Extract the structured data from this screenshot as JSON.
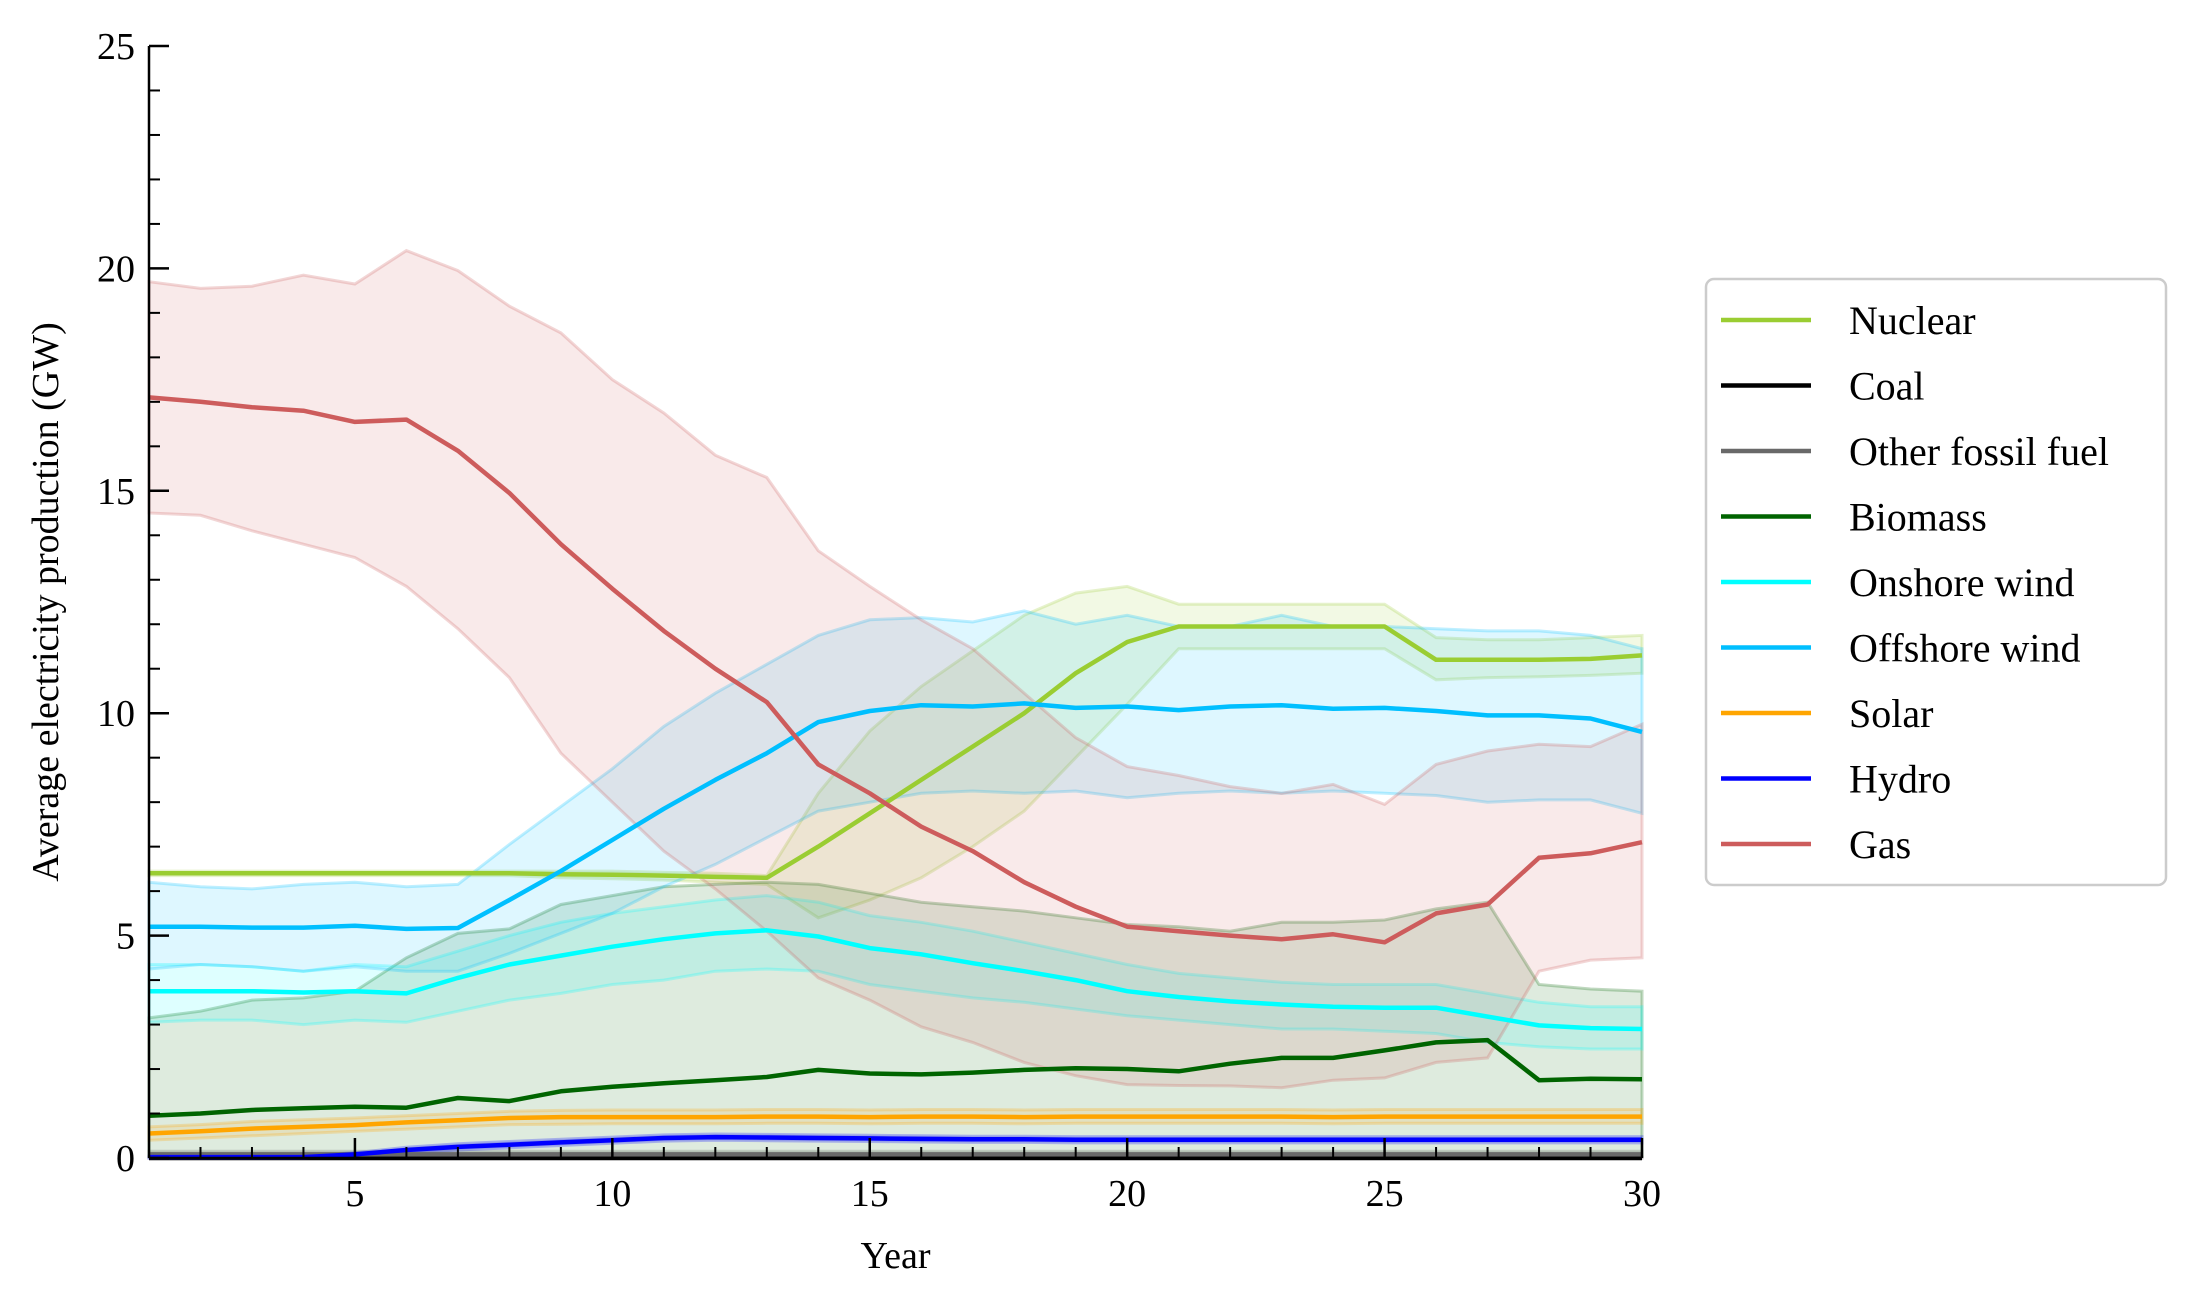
{
  "chart_data": {
    "type": "line",
    "xlabel": "Year",
    "ylabel": "Average electricity production (GW)",
    "xlim": [
      1,
      30
    ],
    "ylim": [
      0,
      25
    ],
    "xticks": [
      5,
      10,
      15,
      20,
      25,
      30
    ],
    "yticks": [
      0,
      5,
      10,
      15,
      20,
      25
    ],
    "x": [
      1,
      2,
      3,
      4,
      5,
      6,
      7,
      8,
      9,
      10,
      11,
      12,
      13,
      14,
      15,
      16,
      17,
      18,
      19,
      20,
      21,
      22,
      23,
      24,
      25,
      26,
      27,
      28,
      29,
      30
    ],
    "legend_position": "right",
    "grid": false,
    "series": [
      {
        "name": "Nuclear",
        "color": "#9acd32",
        "values": [
          6.4,
          6.4,
          6.4,
          6.4,
          6.4,
          6.4,
          6.4,
          6.4,
          6.38,
          6.37,
          6.35,
          6.32,
          6.3,
          7.0,
          7.75,
          8.5,
          9.25,
          10.0,
          10.9,
          11.6,
          11.95,
          11.95,
          11.95,
          11.95,
          11.95,
          11.2,
          11.2,
          11.2,
          11.22,
          11.3
        ],
        "lower": [
          6.35,
          6.35,
          6.35,
          6.35,
          6.35,
          6.35,
          6.35,
          6.35,
          6.3,
          6.28,
          6.25,
          6.2,
          6.15,
          5.4,
          5.8,
          6.3,
          7.0,
          7.8,
          9.0,
          10.2,
          11.45,
          11.45,
          11.45,
          11.45,
          11.45,
          10.75,
          10.8,
          10.82,
          10.85,
          10.9
        ],
        "upper": [
          6.45,
          6.45,
          6.45,
          6.45,
          6.45,
          6.45,
          6.45,
          6.45,
          6.45,
          6.45,
          6.42,
          6.4,
          6.35,
          8.2,
          9.6,
          10.6,
          11.4,
          12.2,
          12.7,
          12.85,
          12.45,
          12.45,
          12.45,
          12.45,
          12.45,
          11.7,
          11.65,
          11.65,
          11.7,
          11.75
        ]
      },
      {
        "name": "Coal",
        "color": "#000000",
        "values": [
          0,
          0,
          0,
          0,
          0,
          0,
          0,
          0,
          0,
          0,
          0,
          0,
          0,
          0,
          0,
          0,
          0,
          0,
          0,
          0,
          0,
          0,
          0,
          0,
          0,
          0,
          0,
          0,
          0,
          0
        ],
        "lower": [
          0,
          0,
          0,
          0,
          0,
          0,
          0,
          0,
          0,
          0,
          0,
          0,
          0,
          0,
          0,
          0,
          0,
          0,
          0,
          0,
          0,
          0,
          0,
          0,
          0,
          0,
          0,
          0,
          0,
          0
        ],
        "upper": [
          0.02,
          0.02,
          0.02,
          0.02,
          0.02,
          0.02,
          0.02,
          0.02,
          0.02,
          0.02,
          0.02,
          0.02,
          0.02,
          0.02,
          0.02,
          0.02,
          0.02,
          0.02,
          0.02,
          0.02,
          0.02,
          0.02,
          0.02,
          0.02,
          0.02,
          0.02,
          0.02,
          0.02,
          0.02,
          0.02
        ]
      },
      {
        "name": "Other fossil fuel",
        "color": "#696969",
        "values": [
          0.08,
          0.08,
          0.08,
          0.08,
          0.08,
          0.08,
          0.08,
          0.08,
          0.08,
          0.08,
          0.08,
          0.08,
          0.08,
          0.08,
          0.08,
          0.08,
          0.08,
          0.08,
          0.08,
          0.08,
          0.08,
          0.08,
          0.08,
          0.08,
          0.08,
          0.08,
          0.08,
          0.08,
          0.08,
          0.08
        ],
        "lower": [
          0.04,
          0.04,
          0.04,
          0.04,
          0.04,
          0.04,
          0.04,
          0.04,
          0.04,
          0.04,
          0.04,
          0.04,
          0.04,
          0.04,
          0.04,
          0.04,
          0.04,
          0.04,
          0.04,
          0.04,
          0.04,
          0.04,
          0.04,
          0.04,
          0.04,
          0.04,
          0.04,
          0.04,
          0.04,
          0.04
        ],
        "upper": [
          0.15,
          0.15,
          0.15,
          0.15,
          0.15,
          0.15,
          0.15,
          0.15,
          0.15,
          0.15,
          0.15,
          0.15,
          0.15,
          0.15,
          0.15,
          0.15,
          0.15,
          0.15,
          0.15,
          0.15,
          0.15,
          0.15,
          0.15,
          0.15,
          0.15,
          0.15,
          0.15,
          0.15,
          0.15,
          0.15
        ]
      },
      {
        "name": "Biomass",
        "color": "#006400",
        "values": [
          0.95,
          1.0,
          1.08,
          1.12,
          1.15,
          1.13,
          1.35,
          1.28,
          1.5,
          1.6,
          1.68,
          1.75,
          1.82,
          1.98,
          1.9,
          1.88,
          1.92,
          1.98,
          2.02,
          2.0,
          1.95,
          2.12,
          2.25,
          2.25,
          2.42,
          2.6,
          2.65,
          1.75,
          1.78,
          1.77
        ],
        "lower": [
          0.05,
          0.05,
          0.05,
          0.05,
          0.05,
          0.05,
          0.05,
          0.05,
          0.05,
          0.05,
          0.05,
          0.05,
          0.05,
          0.05,
          0.05,
          0.05,
          0.05,
          0.05,
          0.05,
          0.05,
          0.05,
          0.05,
          0.05,
          0.05,
          0.05,
          0.05,
          0.05,
          0.05,
          0.05,
          0.05
        ],
        "upper": [
          3.15,
          3.3,
          3.55,
          3.6,
          3.75,
          4.5,
          5.05,
          5.15,
          5.7,
          5.9,
          6.1,
          6.15,
          6.2,
          6.15,
          5.95,
          5.75,
          5.65,
          5.55,
          5.4,
          5.25,
          5.2,
          5.1,
          5.3,
          5.3,
          5.35,
          5.6,
          5.75,
          3.9,
          3.8,
          3.75
        ]
      },
      {
        "name": "Onshore wind",
        "color": "#00ffff",
        "values": [
          3.75,
          3.75,
          3.75,
          3.72,
          3.75,
          3.7,
          4.05,
          4.35,
          4.55,
          4.75,
          4.92,
          5.05,
          5.12,
          4.98,
          4.72,
          4.58,
          4.38,
          4.2,
          4.0,
          3.75,
          3.62,
          3.52,
          3.45,
          3.4,
          3.38,
          3.38,
          3.18,
          2.98,
          2.92,
          2.9
        ],
        "lower": [
          3.05,
          3.1,
          3.1,
          3.0,
          3.1,
          3.05,
          3.3,
          3.55,
          3.7,
          3.9,
          4.0,
          4.2,
          4.25,
          4.2,
          3.9,
          3.75,
          3.6,
          3.5,
          3.35,
          3.2,
          3.1,
          3.0,
          2.9,
          2.9,
          2.85,
          2.8,
          2.6,
          2.5,
          2.45,
          2.45
        ],
        "upper": [
          4.35,
          4.35,
          4.3,
          4.2,
          4.35,
          4.3,
          4.65,
          5.0,
          5.3,
          5.5,
          5.65,
          5.8,
          5.9,
          5.75,
          5.45,
          5.3,
          5.1,
          4.85,
          4.6,
          4.35,
          4.15,
          4.05,
          3.95,
          3.9,
          3.9,
          3.9,
          3.7,
          3.5,
          3.4,
          3.4
        ]
      },
      {
        "name": "Offshore wind",
        "color": "#00bfff",
        "values": [
          5.2,
          5.2,
          5.18,
          5.18,
          5.22,
          5.15,
          5.17,
          5.8,
          6.45,
          7.15,
          7.85,
          8.5,
          9.1,
          9.8,
          10.05,
          10.18,
          10.15,
          10.22,
          10.12,
          10.15,
          10.07,
          10.15,
          10.18,
          10.1,
          10.12,
          10.05,
          9.95,
          9.95,
          9.88,
          9.58
        ],
        "lower": [
          4.25,
          4.35,
          4.3,
          4.2,
          4.3,
          4.2,
          4.2,
          4.6,
          5.05,
          5.5,
          6.1,
          6.6,
          7.2,
          7.8,
          8.0,
          8.2,
          8.25,
          8.2,
          8.25,
          8.1,
          8.2,
          8.25,
          8.2,
          8.25,
          8.2,
          8.15,
          8.0,
          8.05,
          8.05,
          7.75
        ],
        "upper": [
          6.2,
          6.1,
          6.05,
          6.15,
          6.2,
          6.1,
          6.15,
          7.05,
          7.9,
          8.75,
          9.7,
          10.45,
          11.1,
          11.75,
          12.1,
          12.15,
          12.05,
          12.3,
          12.0,
          12.2,
          11.95,
          11.95,
          12.2,
          11.95,
          11.95,
          11.9,
          11.85,
          11.85,
          11.75,
          11.45
        ]
      },
      {
        "name": "Solar",
        "color": "#ffa500",
        "values": [
          0.55,
          0.6,
          0.66,
          0.7,
          0.74,
          0.8,
          0.85,
          0.9,
          0.92,
          0.92,
          0.92,
          0.92,
          0.93,
          0.93,
          0.92,
          0.93,
          0.93,
          0.92,
          0.93,
          0.93,
          0.93,
          0.93,
          0.93,
          0.92,
          0.93,
          0.93,
          0.93,
          0.93,
          0.93,
          0.93
        ],
        "lower": [
          0.4,
          0.45,
          0.5,
          0.55,
          0.6,
          0.65,
          0.7,
          0.75,
          0.76,
          0.77,
          0.77,
          0.77,
          0.78,
          0.78,
          0.77,
          0.78,
          0.78,
          0.77,
          0.78,
          0.78,
          0.78,
          0.78,
          0.78,
          0.77,
          0.78,
          0.78,
          0.78,
          0.78,
          0.78,
          0.78
        ],
        "upper": [
          0.7,
          0.75,
          0.82,
          0.86,
          0.9,
          0.95,
          1.0,
          1.05,
          1.07,
          1.08,
          1.08,
          1.08,
          1.09,
          1.09,
          1.08,
          1.09,
          1.09,
          1.08,
          1.09,
          1.09,
          1.09,
          1.09,
          1.09,
          1.08,
          1.09,
          1.09,
          1.09,
          1.09,
          1.09,
          1.09
        ]
      },
      {
        "name": "Hydro",
        "color": "#0000ff",
        "values": [
          0.02,
          0.02,
          0.02,
          0.02,
          0.08,
          0.18,
          0.25,
          0.3,
          0.35,
          0.4,
          0.45,
          0.47,
          0.46,
          0.45,
          0.44,
          0.43,
          0.42,
          0.42,
          0.41,
          0.41,
          0.41,
          0.41,
          0.41,
          0.41,
          0.41,
          0.41,
          0.41,
          0.41,
          0.41,
          0.41
        ],
        "lower": [
          0.0,
          0.0,
          0.0,
          0.0,
          0.04,
          0.12,
          0.18,
          0.23,
          0.28,
          0.33,
          0.38,
          0.4,
          0.39,
          0.38,
          0.37,
          0.36,
          0.35,
          0.35,
          0.34,
          0.34,
          0.34,
          0.34,
          0.34,
          0.34,
          0.34,
          0.34,
          0.34,
          0.34,
          0.34,
          0.34
        ],
        "upper": [
          0.04,
          0.04,
          0.04,
          0.05,
          0.12,
          0.24,
          0.32,
          0.37,
          0.42,
          0.47,
          0.52,
          0.54,
          0.53,
          0.52,
          0.51,
          0.5,
          0.49,
          0.49,
          0.48,
          0.48,
          0.48,
          0.48,
          0.48,
          0.48,
          0.48,
          0.48,
          0.48,
          0.48,
          0.48,
          0.48
        ]
      },
      {
        "name": "Gas",
        "color": "#cd5c5c",
        "values": [
          17.1,
          17.0,
          16.88,
          16.8,
          16.55,
          16.6,
          15.9,
          14.95,
          13.8,
          12.8,
          11.85,
          11.0,
          10.25,
          8.85,
          8.2,
          7.45,
          6.9,
          6.2,
          5.65,
          5.2,
          5.1,
          5.0,
          4.92,
          5.03,
          4.85,
          5.5,
          5.7,
          6.75,
          6.85,
          7.1
        ],
        "lower": [
          14.5,
          14.45,
          14.1,
          13.8,
          13.5,
          12.85,
          11.9,
          10.8,
          9.1,
          8.0,
          6.9,
          6.05,
          5.1,
          4.05,
          3.55,
          2.95,
          2.6,
          2.15,
          1.85,
          1.65,
          1.63,
          1.62,
          1.58,
          1.75,
          1.8,
          2.15,
          2.25,
          4.2,
          4.45,
          4.5
        ],
        "upper": [
          19.7,
          19.55,
          19.6,
          19.85,
          19.65,
          20.4,
          19.95,
          19.15,
          18.55,
          17.5,
          16.75,
          15.8,
          15.3,
          13.65,
          12.85,
          12.1,
          11.45,
          10.45,
          9.45,
          8.8,
          8.6,
          8.35,
          8.2,
          8.4,
          7.95,
          8.85,
          9.15,
          9.3,
          9.25,
          9.75
        ]
      }
    ]
  }
}
